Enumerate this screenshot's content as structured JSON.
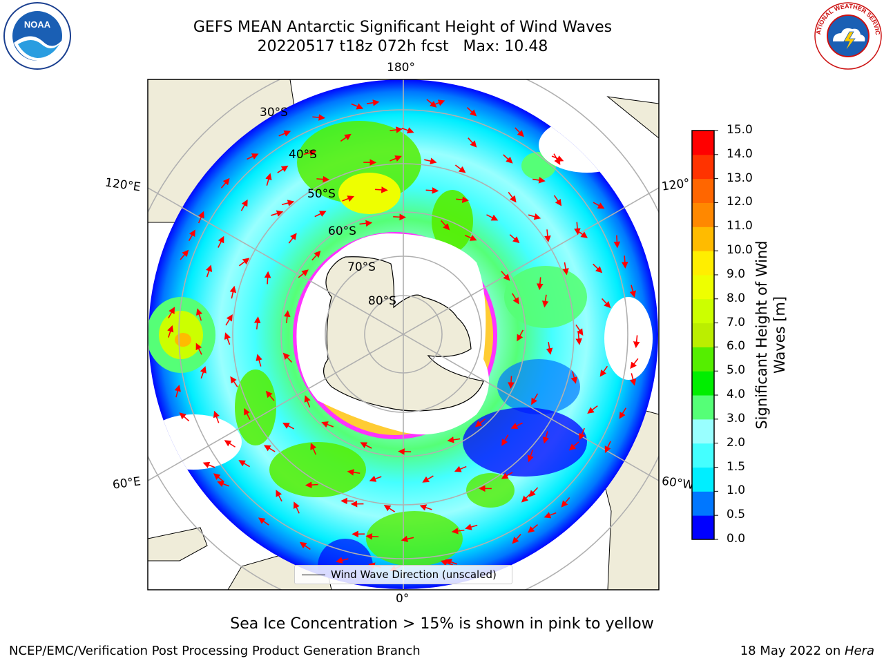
{
  "header": {
    "title_line1": "GEFS MEAN Antarctic Significant Height of Wind Waves",
    "title_line2": "20220517 t18z 072h fcst   Max: 10.48"
  },
  "map": {
    "lon_labels": {
      "top": "180°",
      "bottom": "0°",
      "upper_left": "120°E",
      "lower_left": "60°E",
      "upper_right": "120°",
      "lower_right": "60°W"
    },
    "lat_labels": [
      "30°S",
      "40°S",
      "50°S",
      "60°S",
      "70°S",
      "80°S"
    ],
    "legend_label": "Wind Wave Direction (unscaled)",
    "colors": {
      "land": "#efecd9",
      "ice_edge_outer": "#ff33ff",
      "ice_edge_inner": "#ffcc33",
      "arrow": "#ff0000",
      "grid": "#b0b0b0"
    }
  },
  "colorbar": {
    "title": "Significant Height of Wind Waves [m]",
    "title_line1": "Significant Height of Wind",
    "title_line2": "Waves [m]",
    "ticks": [
      "0.0",
      "0.5",
      "1.0",
      "1.5",
      "2.0",
      "3.0",
      "4.0",
      "5.0",
      "6.0",
      "7.0",
      "8.0",
      "9.0",
      "10.0",
      "11.0",
      "12.0",
      "13.0",
      "14.0",
      "15.0"
    ],
    "colors": [
      "#0000ff",
      "#0077ff",
      "#00eeff",
      "#44ffff",
      "#99ffff",
      "#55ff77",
      "#00ee00",
      "#55ee00",
      "#bbee00",
      "#ccff00",
      "#eeff00",
      "#ffee00",
      "#ffbb00",
      "#ff8800",
      "#ff6600",
      "#ff3300",
      "#ff0000"
    ]
  },
  "caption": "Sea Ice Concentration > 15% is shown in pink to yellow",
  "footer": {
    "left": "NCEP/EMC/Verification Post Processing Product Generation Branch",
    "right_prefix": "18 May 2022 on ",
    "right_host": "Hera"
  },
  "logos": {
    "left_text": "NOAA",
    "right_text": "NATIONAL WEATHER SERVICE"
  }
}
